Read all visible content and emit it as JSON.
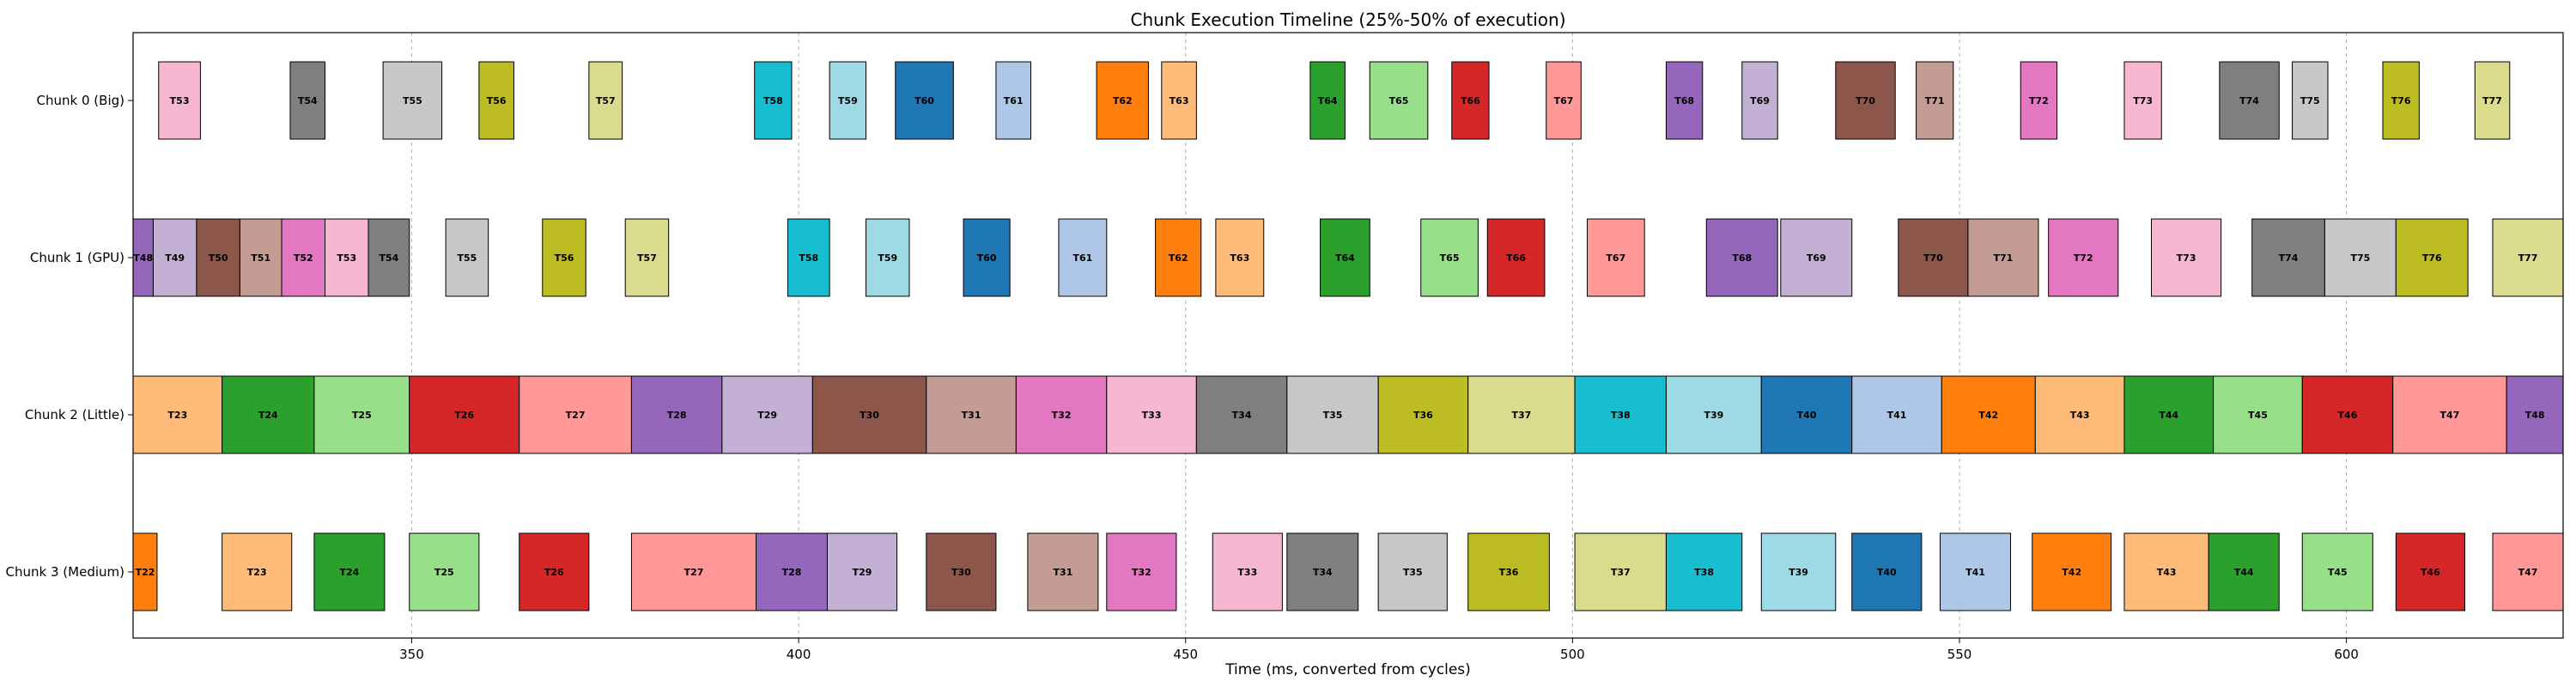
{
  "chart_data": {
    "type": "bar",
    "orientation": "horizontal",
    "title": "Chunk Execution Timeline (25%-50% of execution)",
    "xlabel": "Time (ms, converted from cycles)",
    "ylabel": "",
    "xlim": [
      314,
      628
    ],
    "xticks": [
      350,
      400,
      450,
      500,
      550,
      600
    ],
    "grid": "x",
    "categories": [
      "Chunk 0 (Big)",
      "Chunk 1 (GPU)",
      "Chunk 2 (Little)",
      "Chunk 3 (Medium)"
    ],
    "colors": {
      "T23": "#ffbb78",
      "T24": "#2ca02c",
      "T25": "#98df8a",
      "T26": "#d62728",
      "T27": "#ff9896",
      "T28": "#9467bd",
      "T29": "#c5b0d5",
      "T30": "#8c564b",
      "T31": "#c49c94",
      "T32": "#e377c2",
      "T33": "#f7b6d2",
      "T34": "#7f7f7f",
      "T35": "#c7c7c7",
      "T36": "#bcbd22",
      "T37": "#dbdb8d",
      "T38": "#17becf",
      "T39": "#9edae5",
      "T40": "#1f77b4",
      "T41": "#aec7e8",
      "T42": "#ff7f0e",
      "T43": "#ffbb78",
      "T44": "#2ca02c",
      "T45": "#98df8a",
      "T46": "#d62728",
      "T47": "#ff9896",
      "T48": "#9467bd",
      "T49": "#c5b0d5",
      "T50": "#8c564b",
      "T51": "#c49c94",
      "T52": "#e377c2",
      "T53": "#f7b6d2",
      "T54": "#7f7f7f",
      "T55": "#c7c7c7",
      "T56": "#bcbd22",
      "T57": "#dbdb8d",
      "T58": "#17becf",
      "T59": "#9edae5",
      "T60": "#1f77b4",
      "T61": "#aec7e8",
      "T62": "#ff7f0e",
      "T63": "#ffbb78",
      "T64": "#2ca02c",
      "T65": "#98df8a",
      "T66": "#d62728",
      "T67": "#ff9896",
      "T68": "#9467bd",
      "T69": "#c5b0d5",
      "T70": "#8c564b",
      "T71": "#c49c94",
      "T72": "#e377c2",
      "T73": "#f7b6d2",
      "T74": "#7f7f7f",
      "T75": "#c7c7c7",
      "T76": "#bcbd22",
      "T77": "#dbdb8d",
      "T22": "#ff7f0e"
    },
    "series": [
      {
        "tasks": [
          {
            "label": "T53",
            "start": 317.3,
            "end": 322.7
          },
          {
            "label": "T54",
            "start": 334.3,
            "end": 338.8
          },
          {
            "label": "T55",
            "start": 346.3,
            "end": 353.9
          },
          {
            "label": "T56",
            "start": 358.7,
            "end": 363.2
          },
          {
            "label": "T57",
            "start": 372.9,
            "end": 377.2
          },
          {
            "label": "T58",
            "start": 394.3,
            "end": 399.1
          },
          {
            "label": "T59",
            "start": 404.0,
            "end": 408.7
          },
          {
            "label": "T60",
            "start": 412.5,
            "end": 420.0
          },
          {
            "label": "T61",
            "start": 425.5,
            "end": 430.0
          },
          {
            "label": "T62",
            "start": 438.5,
            "end": 445.2
          },
          {
            "label": "T63",
            "start": 446.9,
            "end": 451.4
          },
          {
            "label": "T64",
            "start": 466.1,
            "end": 470.6
          },
          {
            "label": "T65",
            "start": 473.8,
            "end": 481.3
          },
          {
            "label": "T66",
            "start": 484.4,
            "end": 489.2
          },
          {
            "label": "T67",
            "start": 496.6,
            "end": 501.1
          },
          {
            "label": "T68",
            "start": 512.1,
            "end": 516.8
          },
          {
            "label": "T69",
            "start": 521.9,
            "end": 526.5
          },
          {
            "label": "T70",
            "start": 534.0,
            "end": 541.7
          },
          {
            "label": "T71",
            "start": 544.4,
            "end": 549.2
          },
          {
            "label": "T72",
            "start": 557.9,
            "end": 562.6
          },
          {
            "label": "T73",
            "start": 571.3,
            "end": 576.1
          },
          {
            "label": "T74",
            "start": 583.6,
            "end": 591.3
          },
          {
            "label": "T75",
            "start": 593.0,
            "end": 597.6
          },
          {
            "label": "T76",
            "start": 604.7,
            "end": 609.4
          },
          {
            "label": "T77",
            "start": 616.6,
            "end": 621.1
          }
        ]
      },
      {
        "tasks": [
          {
            "label": "T48",
            "start": 314.0,
            "end": 316.6
          },
          {
            "label": "T49",
            "start": 316.6,
            "end": 322.2
          },
          {
            "label": "T50",
            "start": 322.2,
            "end": 327.8
          },
          {
            "label": "T51",
            "start": 327.8,
            "end": 333.2
          },
          {
            "label": "T52",
            "start": 333.2,
            "end": 338.8
          },
          {
            "label": "T53",
            "start": 338.8,
            "end": 344.4
          },
          {
            "label": "T54",
            "start": 344.4,
            "end": 349.7
          },
          {
            "label": "T55",
            "start": 354.4,
            "end": 359.9
          },
          {
            "label": "T56",
            "start": 366.9,
            "end": 372.5
          },
          {
            "label": "T57",
            "start": 377.6,
            "end": 383.2
          },
          {
            "label": "T58",
            "start": 398.6,
            "end": 404.0
          },
          {
            "label": "T59",
            "start": 408.7,
            "end": 414.3
          },
          {
            "label": "T60",
            "start": 421.3,
            "end": 427.3
          },
          {
            "label": "T61",
            "start": 433.6,
            "end": 439.8
          },
          {
            "label": "T62",
            "start": 446.1,
            "end": 452.0
          },
          {
            "label": "T63",
            "start": 453.9,
            "end": 460.1
          },
          {
            "label": "T64",
            "start": 467.4,
            "end": 473.8
          },
          {
            "label": "T65",
            "start": 480.4,
            "end": 487.8
          },
          {
            "label": "T66",
            "start": 489.0,
            "end": 496.4
          },
          {
            "label": "T67",
            "start": 501.9,
            "end": 509.3
          },
          {
            "label": "T68",
            "start": 517.3,
            "end": 526.5
          },
          {
            "label": "T69",
            "start": 526.9,
            "end": 536.1
          },
          {
            "label": "T70",
            "start": 542.1,
            "end": 551.1
          },
          {
            "label": "T71",
            "start": 551.1,
            "end": 560.2
          },
          {
            "label": "T72",
            "start": 561.5,
            "end": 570.5
          },
          {
            "label": "T73",
            "start": 574.8,
            "end": 583.8
          },
          {
            "label": "T74",
            "start": 587.8,
            "end": 597.2
          },
          {
            "label": "T75",
            "start": 597.2,
            "end": 606.4
          },
          {
            "label": "T76",
            "start": 606.4,
            "end": 615.7
          },
          {
            "label": "T77",
            "start": 618.9,
            "end": 628.0
          }
        ]
      },
      {
        "tasks": [
          {
            "label": "T23",
            "start": 314.0,
            "end": 325.5
          },
          {
            "label": "T24",
            "start": 325.5,
            "end": 337.4
          },
          {
            "label": "T25",
            "start": 337.4,
            "end": 349.7
          },
          {
            "label": "T26",
            "start": 349.7,
            "end": 363.9
          },
          {
            "label": "T27",
            "start": 363.9,
            "end": 378.4
          },
          {
            "label": "T28",
            "start": 378.4,
            "end": 390.1
          },
          {
            "label": "T29",
            "start": 390.1,
            "end": 401.8
          },
          {
            "label": "T30",
            "start": 401.8,
            "end": 416.5
          },
          {
            "label": "T31",
            "start": 416.5,
            "end": 428.1
          },
          {
            "label": "T32",
            "start": 428.1,
            "end": 439.8
          },
          {
            "label": "T33",
            "start": 439.8,
            "end": 451.4
          },
          {
            "label": "T34",
            "start": 451.4,
            "end": 463.1
          },
          {
            "label": "T35",
            "start": 463.1,
            "end": 474.9
          },
          {
            "label": "T36",
            "start": 474.9,
            "end": 486.5
          },
          {
            "label": "T37",
            "start": 486.5,
            "end": 500.3
          },
          {
            "label": "T38",
            "start": 500.3,
            "end": 512.1
          },
          {
            "label": "T39",
            "start": 512.1,
            "end": 524.4
          },
          {
            "label": "T40",
            "start": 524.4,
            "end": 536.1
          },
          {
            "label": "T41",
            "start": 536.1,
            "end": 547.7
          },
          {
            "label": "T42",
            "start": 547.7,
            "end": 559.8
          },
          {
            "label": "T43",
            "start": 559.8,
            "end": 571.3
          },
          {
            "label": "T44",
            "start": 571.3,
            "end": 582.8
          },
          {
            "label": "T45",
            "start": 582.8,
            "end": 594.3
          },
          {
            "label": "T46",
            "start": 594.3,
            "end": 606.0
          },
          {
            "label": "T47",
            "start": 606.0,
            "end": 620.7
          },
          {
            "label": "T48",
            "start": 620.7,
            "end": 628.0
          }
        ]
      },
      {
        "tasks": [
          {
            "label": "T22",
            "start": 314.0,
            "end": 317.1
          },
          {
            "label": "T23",
            "start": 325.5,
            "end": 334.5
          },
          {
            "label": "T24",
            "start": 337.4,
            "end": 346.5
          },
          {
            "label": "T25",
            "start": 349.7,
            "end": 358.7
          },
          {
            "label": "T26",
            "start": 363.9,
            "end": 372.9
          },
          {
            "label": "T27",
            "start": 378.4,
            "end": 394.5
          },
          {
            "label": "T28",
            "start": 394.5,
            "end": 403.7
          },
          {
            "label": "T29",
            "start": 403.7,
            "end": 412.7
          },
          {
            "label": "T30",
            "start": 416.5,
            "end": 425.5
          },
          {
            "label": "T31",
            "start": 429.6,
            "end": 438.7
          },
          {
            "label": "T32",
            "start": 439.8,
            "end": 448.8
          },
          {
            "label": "T33",
            "start": 453.5,
            "end": 462.5
          },
          {
            "label": "T34",
            "start": 463.1,
            "end": 472.3
          },
          {
            "label": "T35",
            "start": 474.9,
            "end": 483.8
          },
          {
            "label": "T36",
            "start": 486.5,
            "end": 497.0
          },
          {
            "label": "T37",
            "start": 500.3,
            "end": 512.1
          },
          {
            "label": "T38",
            "start": 512.1,
            "end": 521.9
          },
          {
            "label": "T39",
            "start": 524.4,
            "end": 534.0
          },
          {
            "label": "T40",
            "start": 536.1,
            "end": 545.1
          },
          {
            "label": "T41",
            "start": 547.5,
            "end": 556.6
          },
          {
            "label": "T42",
            "start": 559.4,
            "end": 569.6
          },
          {
            "label": "T43",
            "start": 571.3,
            "end": 582.2
          },
          {
            "label": "T44",
            "start": 582.2,
            "end": 591.3
          },
          {
            "label": "T45",
            "start": 594.3,
            "end": 603.4
          },
          {
            "label": "T46",
            "start": 606.4,
            "end": 615.3
          },
          {
            "label": "T47",
            "start": 618.9,
            "end": 628.0
          }
        ]
      }
    ]
  }
}
